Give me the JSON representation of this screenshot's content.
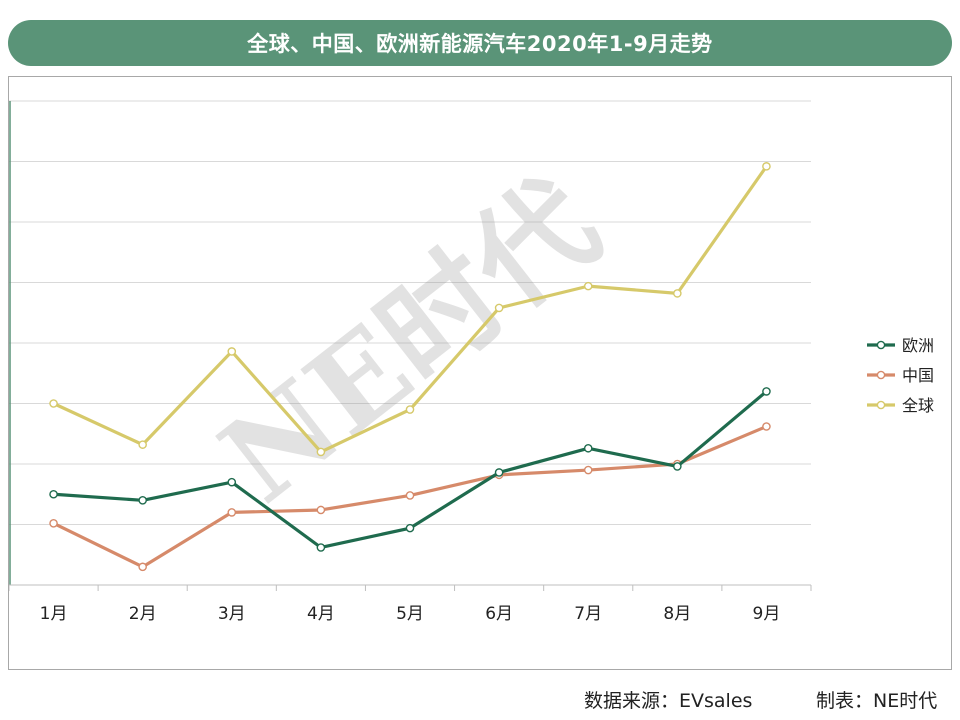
{
  "title": "全球、中国、欧洲新能源汽车2020年1-9月走势",
  "watermark": "NE时代",
  "footer": {
    "source": "数据来源：EVsales",
    "credit": "制表：NE时代"
  },
  "chart_data": {
    "type": "line",
    "categories": [
      "1月",
      "2月",
      "3月",
      "4月",
      "5月",
      "6月",
      "7月",
      "8月",
      "9月"
    ],
    "ylim": [
      0,
      400
    ],
    "grid": true,
    "legend_position": "right",
    "series": [
      {
        "name": "欧洲",
        "color": "#1f6b4e",
        "values": [
          75,
          70,
          85,
          31,
          47,
          93,
          113,
          98,
          160
        ]
      },
      {
        "name": "中国",
        "color": "#d68a6a",
        "values": [
          51,
          15,
          60,
          62,
          74,
          91,
          95,
          100,
          131
        ]
      },
      {
        "name": "全球",
        "color": "#d6c96a",
        "values": [
          150,
          116,
          193,
          110,
          145,
          229,
          247,
          241,
          346
        ]
      }
    ]
  }
}
